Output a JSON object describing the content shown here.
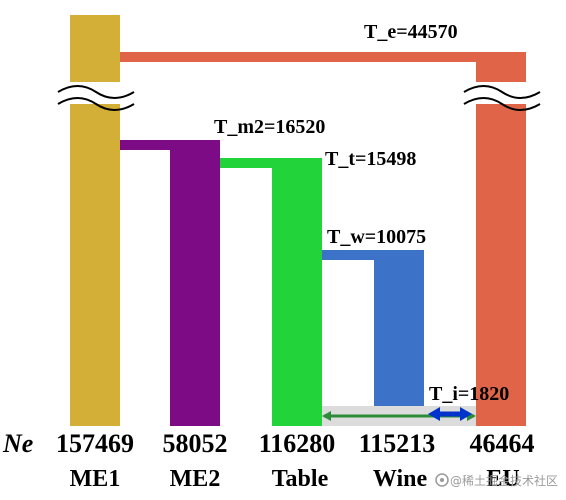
{
  "colors": {
    "me1": "#d4af37",
    "me2": "#7d0b86",
    "table": "#22d33a",
    "wine": "#3c72c8",
    "eu": "#e06447",
    "arrow_green": "#2e8b3a",
    "arrow_blue": "#0033cc",
    "shade": "#dcdcdc"
  },
  "split_labels": {
    "t_e": "T_e=44570",
    "t_m2": "T_m2=16520",
    "t_t": "T_t=15498",
    "t_w": "T_w=10075",
    "t_i": "T_i=1820"
  },
  "ne_label": "Ne",
  "populations": [
    {
      "name": "ME1",
      "ne": "157469"
    },
    {
      "name": "ME2",
      "ne": "58052"
    },
    {
      "name": "Table",
      "ne": "116280"
    },
    {
      "name": "Wine",
      "ne": "115213"
    },
    {
      "name": "EU",
      "ne": "46464"
    }
  ],
  "watermark": {
    "icon": "watermark-logo-icon",
    "text": "@稀土掘金技术社区"
  }
}
